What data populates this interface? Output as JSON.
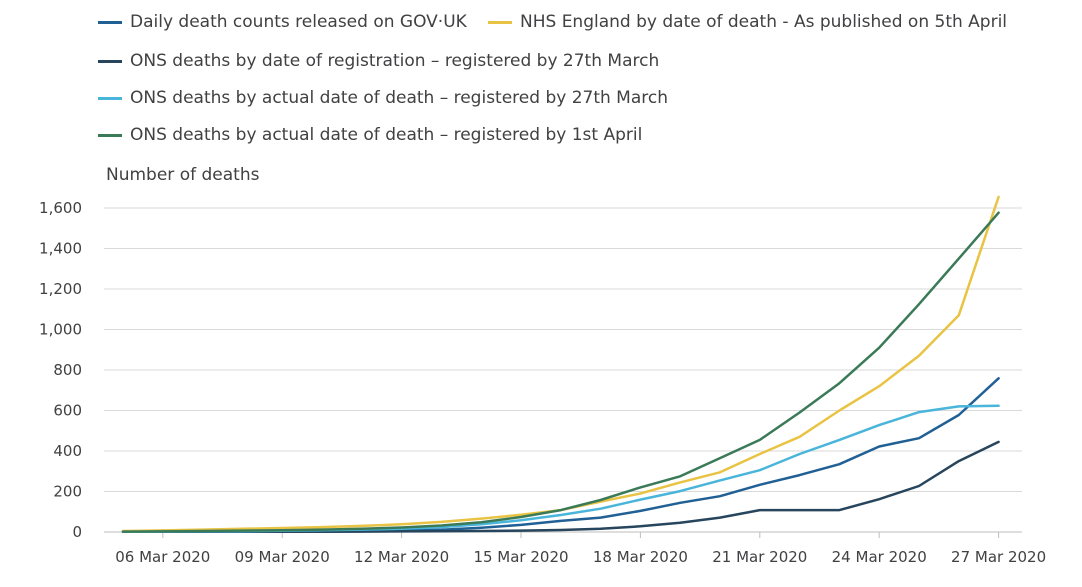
{
  "chart_data": {
    "type": "line",
    "ylabel": "Number of deaths",
    "ylim": [
      0,
      1700
    ],
    "yticks": [
      0,
      200,
      400,
      600,
      800,
      1000,
      1200,
      1400,
      1600
    ],
    "ytick_labels": [
      "0",
      "200",
      "400",
      "600",
      "800",
      "1,000",
      "1,200",
      "1,400",
      "1,600"
    ],
    "x": [
      "05 Mar 2020",
      "06 Mar 2020",
      "07 Mar 2020",
      "08 Mar 2020",
      "09 Mar 2020",
      "10 Mar 2020",
      "11 Mar 2020",
      "12 Mar 2020",
      "13 Mar 2020",
      "14 Mar 2020",
      "15 Mar 2020",
      "16 Mar 2020",
      "17 Mar 2020",
      "18 Mar 2020",
      "19 Mar 2020",
      "20 Mar 2020",
      "21 Mar 2020",
      "22 Mar 2020",
      "23 Mar 2020",
      "24 Mar 2020",
      "25 Mar 2020",
      "26 Mar 2020",
      "27 Mar 2020"
    ],
    "xtick_labels": [
      "06 Mar 2020",
      "09 Mar 2020",
      "12 Mar 2020",
      "15 Mar 2020",
      "18 Mar 2020",
      "21 Mar 2020",
      "24 Mar 2020",
      "27 Mar 2020"
    ],
    "grid": "horizontal",
    "legend_position": "top",
    "series": [
      {
        "name": "Daily death counts released on GOV·UK",
        "color": "#206095",
        "values": [
          1,
          2,
          2,
          3,
          4,
          6,
          8,
          10,
          11,
          21,
          35,
          55,
          71,
          104,
          144,
          177,
          233,
          281,
          335,
          422,
          463,
          578,
          759
        ]
      },
      {
        "name": "NHS England by date of death - As published on 5th April",
        "color": "#e9c344",
        "values": [
          5,
          8,
          12,
          16,
          20,
          24,
          30,
          38,
          50,
          66,
          85,
          108,
          150,
          190,
          245,
          295,
          385,
          470,
          600,
          720,
          870,
          1070,
          1655
        ]
      },
      {
        "name": "ONS deaths by date of registration – registered by 27th March",
        "color": "#27455c",
        "values": [
          1,
          1,
          1,
          1,
          1,
          1,
          2,
          3,
          4,
          5,
          7,
          10,
          16,
          28,
          46,
          71,
          108,
          108,
          108,
          162,
          227,
          350,
          445
        ]
      },
      {
        "name": "ONS deaths by actual date of death – registered by 27th March",
        "color": "#4ab5da",
        "values": [
          1,
          2,
          3,
          4,
          6,
          9,
          12,
          16,
          24,
          38,
          58,
          84,
          115,
          160,
          202,
          255,
          305,
          385,
          455,
          528,
          592,
          620,
          623
        ]
      },
      {
        "name": "ONS deaths by actual date of death – registered by 1st April",
        "color": "#3b7a57",
        "values": [
          2,
          3,
          5,
          7,
          9,
          12,
          16,
          22,
          32,
          48,
          74,
          108,
          158,
          220,
          275,
          365,
          455,
          590,
          735,
          910,
          1125,
          1350,
          1577
        ]
      }
    ]
  }
}
